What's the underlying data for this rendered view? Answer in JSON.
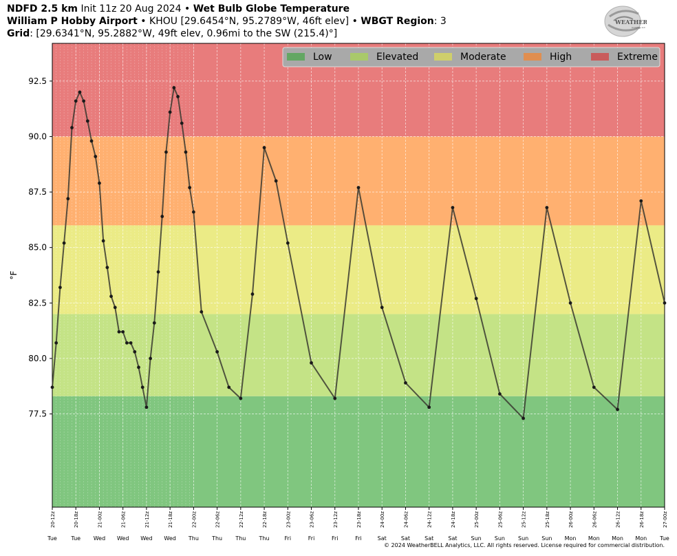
{
  "header": {
    "model": "NDFD 2.5 km",
    "init": "Init 11z 20 Aug 2024",
    "sep": "•",
    "product": "Wet Bulb Globe Temperature",
    "station_name": "William P Hobby Airport",
    "station_info": "KHOU [29.6454°N, 95.2789°W, 46ft elev]",
    "region_label": "WBGT Region",
    "region_value": "3",
    "grid_label": "Grid",
    "grid_info": "[29.6341°N, 95.2882°W, 49ft elev, 0.96mi to the SW (215.4)°]"
  },
  "logo": {
    "text": "WEATHERBELL",
    "sub": "Analytics LLC"
  },
  "copyright": "© 2024 WeatherBELL Analytics, LLC. All rights reserved. License required for commercial distribution.",
  "colors": {
    "low": "#80c67f",
    "elevated": "#c4e386",
    "moderate": "#ebeb86",
    "high": "#ffb070",
    "extreme": "#e87c7c",
    "line": "#3a3a30",
    "legend_bg": "#a9a9a9",
    "legend_low": "#63a763",
    "legend_elevated": "#a9c96a",
    "legend_moderate": "#cfcf6b",
    "legend_high": "#e08e50",
    "legend_extreme": "#c95c5c"
  },
  "chart_data": {
    "type": "line",
    "title": "Wet Bulb Globe Temperature",
    "xlabel": "",
    "ylabel": "°F",
    "ylim": [
      73.3,
      94.2
    ],
    "yticks": [
      77.5,
      80.0,
      82.5,
      85.0,
      87.5,
      90.0,
      92.5
    ],
    "grid": true,
    "legend": "top-right",
    "bands": [
      {
        "name": "Low",
        "from": 73.3,
        "to": 78.3
      },
      {
        "name": "Elevated",
        "from": 78.3,
        "to": 82.0
      },
      {
        "name": "Moderate",
        "from": 82.0,
        "to": 86.0
      },
      {
        "name": "High",
        "from": 86.0,
        "to": 90.0
      },
      {
        "name": "Extreme",
        "from": 90.0,
        "to": 94.2
      }
    ],
    "xlim_hours": [
      0,
      156
    ],
    "xticks": [
      {
        "h": 0,
        "label": "20-12z",
        "day": "Tue"
      },
      {
        "h": 6,
        "label": "20-18z",
        "day": "Tue"
      },
      {
        "h": 12,
        "label": "21-00z",
        "day": "Wed"
      },
      {
        "h": 18,
        "label": "21-06z",
        "day": "Wed"
      },
      {
        "h": 24,
        "label": "21-12z",
        "day": "Wed"
      },
      {
        "h": 30,
        "label": "21-18z",
        "day": "Wed"
      },
      {
        "h": 36,
        "label": "22-00z",
        "day": "Thu"
      },
      {
        "h": 42,
        "label": "22-06z",
        "day": "Thu"
      },
      {
        "h": 48,
        "label": "22-12z",
        "day": "Thu"
      },
      {
        "h": 54,
        "label": "22-18z",
        "day": "Thu"
      },
      {
        "h": 60,
        "label": "23-00z",
        "day": "Fri"
      },
      {
        "h": 66,
        "label": "23-06z",
        "day": "Fri"
      },
      {
        "h": 72,
        "label": "23-12z",
        "day": "Fri"
      },
      {
        "h": 78,
        "label": "23-18z",
        "day": "Fri"
      },
      {
        "h": 84,
        "label": "24-00z",
        "day": "Sat"
      },
      {
        "h": 90,
        "label": "24-06z",
        "day": "Sat"
      },
      {
        "h": 96,
        "label": "24-12z",
        "day": "Sat"
      },
      {
        "h": 102,
        "label": "24-18z",
        "day": "Sat"
      },
      {
        "h": 108,
        "label": "25-00z",
        "day": "Sun"
      },
      {
        "h": 114,
        "label": "25-06z",
        "day": "Sun"
      },
      {
        "h": 120,
        "label": "25-12z",
        "day": "Sun"
      },
      {
        "h": 126,
        "label": "25-18z",
        "day": "Sun"
      },
      {
        "h": 132,
        "label": "26-00z",
        "day": "Mon"
      },
      {
        "h": 138,
        "label": "26-06z",
        "day": "Mon"
      },
      {
        "h": 144,
        "label": "26-12z",
        "day": "Mon"
      },
      {
        "h": 150,
        "label": "26-18z",
        "day": "Mon"
      },
      {
        "h": 156,
        "label": "27-00z",
        "day": "Tue"
      }
    ],
    "series": [
      {
        "x": [
          0,
          1,
          2,
          3,
          4,
          5,
          6,
          7,
          8,
          9,
          10,
          11,
          12,
          13,
          14,
          15,
          16,
          17,
          18,
          19,
          20,
          21,
          22,
          23,
          24,
          25,
          26,
          27,
          28,
          29,
          30,
          31,
          32,
          33,
          34,
          35,
          36,
          38,
          42,
          45,
          48,
          51,
          54,
          57,
          60,
          66,
          72,
          78,
          84,
          90,
          96,
          102,
          108,
          114,
          120,
          126,
          132,
          138,
          144,
          150,
          156
        ],
        "y": [
          78.7,
          80.7,
          83.2,
          85.2,
          87.2,
          90.4,
          91.6,
          92.0,
          91.6,
          90.7,
          89.8,
          89.1,
          87.9,
          85.3,
          84.1,
          82.8,
          82.3,
          81.2,
          81.2,
          80.7,
          80.7,
          80.3,
          79.6,
          78.7,
          77.8,
          80.0,
          81.6,
          83.9,
          86.4,
          89.3,
          91.1,
          92.2,
          91.8,
          90.6,
          89.3,
          87.7,
          86.6,
          82.1,
          80.3,
          78.7,
          78.2,
          82.9,
          89.5,
          88.0,
          85.2,
          79.8,
          78.2,
          87.7,
          82.3,
          78.9,
          77.8,
          86.8,
          82.7,
          78.4,
          77.3,
          86.8,
          82.5,
          78.7,
          77.7,
          87.1,
          82.5
        ]
      }
    ]
  }
}
